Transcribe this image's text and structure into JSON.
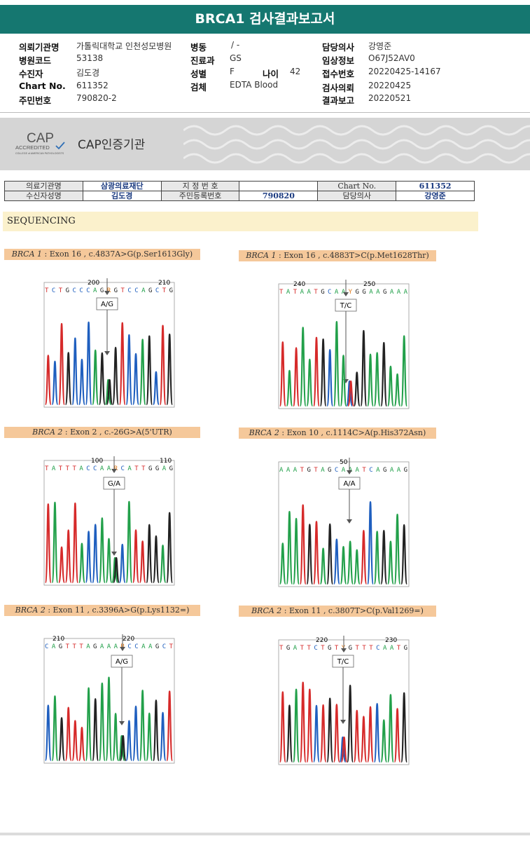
{
  "report": {
    "title": "BRCA1 검사결과보고서"
  },
  "patient": {
    "institution_label": "의뢰기관명",
    "institution": "가톨릭대학교 인천성모병원",
    "hospital_code_label": "병원코드",
    "hospital_code": "53138",
    "recipient_label": "수진자",
    "recipient": "김도경",
    "chart_label": "Chart No.",
    "chart_no": "611352",
    "rrn_label": "주민번호",
    "rrn": "790820-2",
    "ward_label": "병동",
    "ward": "/ -",
    "dept_label": "진료과",
    "dept": "GS",
    "sex_label": "성별",
    "sex": "F",
    "age_label": "나이",
    "age": "42",
    "specimen_label": "검체",
    "specimen": "EDTA Blood",
    "doctor_label": "담당의사",
    "doctor": "강영준",
    "clinical_label": "임상정보",
    "clinical": "O67J52AV0",
    "receipt_label": "접수번호",
    "receipt": "20220425-14167",
    "request_label": "검사의뢰",
    "request_date": "20220425",
    "result_label": "결과보고",
    "result_date": "20220521"
  },
  "cap": {
    "logo_word": "CAP",
    "accredited": "ACCREDITED",
    "college": "COLLEGE of AMERICAN PATHOLOGISTS",
    "label": "CAP인증기관"
  },
  "lab_table": {
    "r1": [
      "의료기관명",
      "삼광의료재단",
      "지 정 번 호",
      "",
      "Chart No.",
      "611352"
    ],
    "r2": [
      "수신자성명",
      "김도경",
      "주민등록번호",
      "790820",
      "담당의사",
      "강영준"
    ]
  },
  "section": {
    "title": "SEQUENCING"
  },
  "variants": [
    {
      "gene": "BRCA 1",
      "desc": " : Exon 16 , c.4837A>G(p.Ser1613Gly)",
      "seq": "TCTGCCCAGRGTCCAGCTG",
      "pos1": "200",
      "pos2": "210",
      "call": "A/G"
    },
    {
      "gene": "BRCA 1",
      "desc": " : Exon 16 , c.4883T>C(p.Met1628Thr)",
      "seq": "TATAATGCAAYGGAAGAAA",
      "pos1": "240",
      "pos2": "250",
      "call": "T/C"
    },
    {
      "gene": "BRCA 2",
      "desc": " : Exon 2 , c.-26G>A(5'UTR)",
      "seq": "TATTTACCAARCATTGGAG",
      "pos1": "100",
      "pos2": "110",
      "call": "G/A"
    },
    {
      "gene": "BRCA 2",
      "desc": " : Exon 10 , c.1114C>A(p.His372Asn)",
      "seq": "AAATGTAGCAAATCAGAAG",
      "pos1": "50",
      "pos2": "",
      "call": "A/A"
    },
    {
      "gene": "BRCA 2",
      "desc": " : Exon 11 , c.3396A>G(p.Lys1132=)",
      "seq": "CAGTTTAGAAARCCAAGCT",
      "pos1": "210",
      "pos2": "220",
      "call": "A/G"
    },
    {
      "gene": "BRCA 2",
      "desc": " : Exon 11 , c.3807T>C(p.Val1269=)",
      "seq": "TGATTCTGTYGTTTCAATG",
      "pos1": "220",
      "pos2": "230",
      "call": "T/C"
    }
  ],
  "colors": {
    "header": "#157770",
    "banner": "#f5c89a",
    "A": "#22a04a",
    "C": "#1f5fbf",
    "G": "#222222",
    "T": "#d62a2a"
  }
}
